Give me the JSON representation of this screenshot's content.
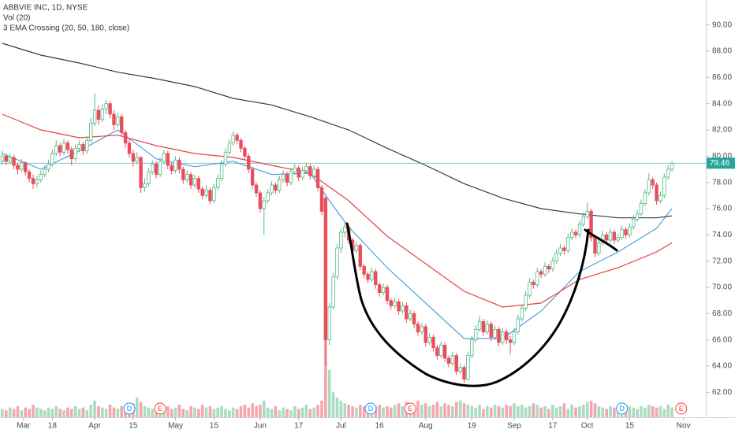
{
  "chart_data": {
    "type": "candlestick",
    "title": "ABBVIE INC, 1D, NYSE",
    "indicators": [
      "Vol (20)",
      "3 EMA Crossing (20, 50, 180, close)"
    ],
    "up_color": "#53b987",
    "down_color": "#eb4d5c",
    "ylim": [
      60.1,
      91.9
    ],
    "yticks": [
      {
        "value": 62,
        "label": "62.00"
      },
      {
        "value": 64,
        "label": "64.00"
      },
      {
        "value": 66,
        "label": "66.00"
      },
      {
        "value": 68,
        "label": "68.00"
      },
      {
        "value": 70,
        "label": "70.00"
      },
      {
        "value": 72,
        "label": "72.00"
      },
      {
        "value": 74,
        "label": "74.00"
      },
      {
        "value": 76,
        "label": "76.00"
      },
      {
        "value": 78,
        "label": "78.00"
      },
      {
        "value": 80,
        "label": "80.00"
      },
      {
        "value": 82,
        "label": "82.00"
      },
      {
        "value": 84,
        "label": "84.00"
      },
      {
        "value": 86,
        "label": "86.00"
      },
      {
        "value": 88,
        "label": "88.00"
      },
      {
        "value": 90,
        "label": "90.00"
      }
    ],
    "xlim": [
      -0.6,
      182.8
    ],
    "xticks": [
      {
        "value": 5.5,
        "label": "Mar"
      },
      {
        "value": 13,
        "label": "18"
      },
      {
        "value": 24,
        "label": "Apr"
      },
      {
        "value": 34,
        "label": "15"
      },
      {
        "value": 45,
        "label": "May"
      },
      {
        "value": 55,
        "label": "15"
      },
      {
        "value": 67,
        "label": "Jun"
      },
      {
        "value": 77,
        "label": "17"
      },
      {
        "value": 88,
        "label": "Jul"
      },
      {
        "value": 98,
        "label": "16"
      },
      {
        "value": 110,
        "label": "Aug"
      },
      {
        "value": 122,
        "label": "19"
      },
      {
        "value": 133,
        "label": "Sep"
      },
      {
        "value": 143,
        "label": "17"
      },
      {
        "value": 152,
        "label": "Oct"
      },
      {
        "value": 163,
        "label": "15"
      },
      {
        "value": 177,
        "label": "Nov"
      }
    ],
    "vlim": [
      0,
      300
    ],
    "last_price": 79.46,
    "last_price_color": "#26a69a",
    "grid": false,
    "ohlc": [
      [
        79.6,
        80.4,
        79.3,
        80.0
      ],
      [
        80.0,
        80.2,
        79.3,
        79.6
      ],
      [
        79.6,
        80.2,
        79.4,
        79.9
      ],
      [
        79.9,
        80.1,
        79.0,
        79.3
      ],
      [
        79.3,
        79.5,
        78.6,
        79.0
      ],
      [
        79.0,
        79.8,
        78.8,
        79.5
      ],
      [
        79.5,
        79.6,
        78.5,
        78.8
      ],
      [
        78.8,
        79.0,
        78.0,
        78.3
      ],
      [
        78.3,
        78.6,
        77.5,
        77.9
      ],
      [
        77.9,
        78.5,
        77.6,
        78.2
      ],
      [
        78.2,
        78.9,
        78.0,
        78.6
      ],
      [
        78.6,
        79.3,
        78.4,
        79.0
      ],
      [
        79.0,
        79.7,
        78.8,
        79.4
      ],
      [
        79.4,
        80.5,
        79.2,
        80.2
      ],
      [
        80.2,
        81.2,
        80.0,
        80.8
      ],
      [
        80.8,
        81.0,
        80.0,
        80.3
      ],
      [
        80.3,
        81.3,
        80.1,
        81.0
      ],
      [
        81.0,
        81.2,
        80.2,
        80.5
      ],
      [
        80.5,
        80.7,
        79.3,
        79.8
      ],
      [
        79.8,
        80.9,
        79.6,
        80.6
      ],
      [
        80.6,
        81.2,
        80.3,
        80.9
      ],
      [
        80.9,
        81.1,
        80.1,
        80.4
      ],
      [
        80.4,
        81.5,
        80.2,
        81.2
      ],
      [
        81.2,
        82.9,
        81.0,
        82.5
      ],
      [
        82.5,
        84.8,
        82.3,
        83.5
      ],
      [
        83.5,
        83.9,
        82.4,
        82.8
      ],
      [
        82.8,
        84.0,
        82.6,
        83.6
      ],
      [
        83.6,
        84.3,
        83.2,
        84.0
      ],
      [
        84.0,
        84.2,
        82.9,
        83.2
      ],
      [
        83.2,
        83.5,
        82.0,
        82.4
      ],
      [
        82.4,
        83.3,
        82.2,
        83.0
      ],
      [
        83.0,
        83.2,
        81.5,
        81.8
      ],
      [
        81.8,
        82.0,
        80.6,
        81.0
      ],
      [
        81.0,
        81.3,
        79.9,
        80.2
      ],
      [
        80.2,
        80.5,
        79.2,
        79.6
      ],
      [
        79.6,
        80.3,
        79.4,
        79.9
      ],
      [
        79.9,
        80.0,
        77.2,
        77.6
      ],
      [
        77.6,
        78.3,
        77.3,
        77.9
      ],
      [
        77.9,
        79.1,
        77.7,
        78.8
      ],
      [
        78.8,
        79.7,
        78.6,
        79.4
      ],
      [
        79.4,
        79.6,
        78.3,
        78.6
      ],
      [
        78.6,
        79.9,
        78.4,
        79.6
      ],
      [
        79.6,
        80.5,
        79.4,
        80.2
      ],
      [
        80.2,
        80.4,
        79.0,
        79.3
      ],
      [
        79.3,
        79.5,
        78.6,
        78.9
      ],
      [
        78.9,
        80.0,
        78.7,
        79.7
      ],
      [
        79.7,
        79.9,
        78.7,
        79.0
      ],
      [
        79.0,
        79.2,
        77.9,
        78.2
      ],
      [
        78.2,
        78.9,
        78.0,
        78.6
      ],
      [
        78.6,
        78.8,
        77.5,
        77.8
      ],
      [
        77.8,
        78.6,
        77.6,
        78.3
      ],
      [
        78.3,
        78.5,
        77.2,
        77.5
      ],
      [
        77.5,
        77.7,
        76.7,
        77.0
      ],
      [
        77.0,
        77.8,
        76.8,
        77.4
      ],
      [
        77.4,
        77.6,
        76.3,
        76.6
      ],
      [
        76.6,
        77.9,
        76.4,
        77.6
      ],
      [
        77.6,
        78.6,
        77.4,
        78.3
      ],
      [
        78.3,
        79.7,
        78.1,
        79.4
      ],
      [
        79.4,
        80.6,
        79.2,
        80.3
      ],
      [
        80.3,
        81.3,
        80.1,
        81.0
      ],
      [
        81.0,
        81.9,
        80.8,
        81.6
      ],
      [
        81.6,
        81.8,
        80.9,
        81.2
      ],
      [
        81.2,
        81.4,
        80.3,
        80.6
      ],
      [
        80.6,
        80.8,
        79.7,
        80.0
      ],
      [
        80.0,
        80.2,
        78.7,
        79.0
      ],
      [
        79.0,
        79.2,
        77.5,
        77.8
      ],
      [
        77.8,
        78.0,
        76.9,
        77.2
      ],
      [
        77.2,
        77.4,
        75.7,
        76.0
      ],
      [
        76.0,
        76.9,
        74.0,
        76.6
      ],
      [
        76.6,
        77.5,
        76.4,
        77.2
      ],
      [
        77.2,
        78.1,
        77.0,
        77.8
      ],
      [
        77.8,
        78.0,
        77.1,
        77.4
      ],
      [
        77.4,
        78.5,
        77.2,
        78.2
      ],
      [
        78.2,
        78.9,
        78.0,
        78.6
      ],
      [
        78.6,
        78.8,
        77.7,
        78.0
      ],
      [
        78.0,
        79.1,
        77.8,
        78.8
      ],
      [
        78.8,
        79.4,
        78.6,
        79.1
      ],
      [
        79.1,
        79.3,
        78.1,
        78.4
      ],
      [
        78.4,
        79.2,
        78.2,
        78.9
      ],
      [
        78.9,
        79.5,
        78.7,
        79.2
      ],
      [
        79.2,
        79.4,
        78.2,
        78.5
      ],
      [
        78.5,
        79.3,
        78.3,
        79.0
      ],
      [
        79.0,
        79.2,
        77.3,
        77.6
      ],
      [
        77.6,
        77.8,
        75.5,
        75.8
      ],
      [
        76.8,
        77.0,
        64.0,
        66.0
      ],
      [
        66.0,
        68.8,
        65.6,
        68.5
      ],
      [
        68.5,
        71.1,
        68.3,
        70.8
      ],
      [
        70.8,
        73.3,
        70.6,
        73.0
      ],
      [
        73.0,
        74.5,
        72.6,
        74.2
      ],
      [
        74.2,
        75.0,
        73.8,
        74.6
      ],
      [
        74.6,
        74.8,
        73.3,
        73.6
      ],
      [
        73.6,
        73.8,
        72.5,
        72.8
      ],
      [
        72.8,
        73.5,
        72.6,
        73.2
      ],
      [
        73.2,
        73.4,
        71.3,
        71.6
      ],
      [
        71.6,
        71.8,
        70.7,
        71.0
      ],
      [
        71.0,
        71.2,
        70.3,
        70.6
      ],
      [
        70.6,
        71.5,
        70.4,
        71.2
      ],
      [
        71.2,
        71.4,
        69.9,
        70.2
      ],
      [
        70.2,
        70.4,
        69.3,
        69.6
      ],
      [
        69.6,
        70.3,
        69.4,
        70.0
      ],
      [
        70.0,
        70.2,
        68.7,
        69.0
      ],
      [
        69.0,
        69.2,
        68.3,
        68.6
      ],
      [
        68.6,
        69.2,
        68.4,
        68.9
      ],
      [
        68.9,
        69.1,
        67.9,
        68.2
      ],
      [
        68.2,
        68.9,
        68.0,
        68.6
      ],
      [
        68.6,
        68.8,
        67.3,
        67.6
      ],
      [
        67.6,
        68.3,
        67.4,
        68.0
      ],
      [
        68.0,
        68.2,
        66.9,
        67.2
      ],
      [
        67.2,
        67.4,
        66.3,
        66.6
      ],
      [
        66.6,
        67.3,
        66.4,
        67.0
      ],
      [
        67.0,
        67.2,
        65.5,
        65.8
      ],
      [
        65.8,
        66.5,
        65.6,
        66.2
      ],
      [
        66.2,
        66.4,
        65.1,
        65.4
      ],
      [
        65.4,
        65.6,
        64.5,
        64.8
      ],
      [
        64.8,
        65.9,
        64.6,
        65.6
      ],
      [
        65.6,
        65.8,
        64.3,
        64.6
      ],
      [
        64.6,
        64.8,
        63.9,
        64.2
      ],
      [
        64.2,
        65.1,
        64.0,
        64.8
      ],
      [
        64.8,
        65.0,
        63.3,
        63.6
      ],
      [
        63.6,
        64.2,
        63.4,
        63.9
      ],
      [
        63.9,
        64.1,
        62.7,
        63.0
      ],
      [
        63.0,
        65.1,
        62.9,
        64.8
      ],
      [
        64.8,
        66.3,
        64.6,
        66.0
      ],
      [
        66.0,
        67.1,
        65.8,
        66.8
      ],
      [
        66.8,
        67.8,
        66.6,
        67.4
      ],
      [
        67.4,
        67.6,
        66.3,
        66.6
      ],
      [
        66.6,
        67.5,
        66.4,
        67.2
      ],
      [
        67.2,
        67.4,
        65.9,
        66.2
      ],
      [
        66.2,
        67.1,
        66.0,
        66.8
      ],
      [
        66.8,
        67.0,
        65.5,
        65.8
      ],
      [
        65.8,
        66.9,
        65.6,
        66.6
      ],
      [
        66.6,
        66.8,
        65.7,
        66.0
      ],
      [
        66.0,
        66.3,
        64.9,
        65.8
      ],
      [
        65.8,
        66.9,
        65.6,
        66.6
      ],
      [
        66.6,
        67.9,
        66.4,
        67.6
      ],
      [
        67.6,
        68.7,
        67.4,
        68.4
      ],
      [
        68.4,
        69.7,
        68.2,
        69.4
      ],
      [
        69.4,
        70.7,
        69.2,
        70.4
      ],
      [
        70.4,
        70.6,
        69.9,
        70.2
      ],
      [
        70.2,
        71.5,
        70.0,
        71.2
      ],
      [
        71.2,
        71.4,
        70.7,
        71.0
      ],
      [
        71.0,
        71.9,
        70.8,
        71.6
      ],
      [
        71.6,
        71.8,
        71.1,
        71.4
      ],
      [
        71.4,
        72.3,
        71.2,
        72.0
      ],
      [
        72.0,
        72.9,
        71.8,
        72.6
      ],
      [
        72.6,
        73.3,
        72.4,
        73.0
      ],
      [
        73.0,
        73.2,
        72.5,
        72.8
      ],
      [
        72.8,
        74.1,
        72.6,
        73.8
      ],
      [
        73.8,
        74.5,
        73.6,
        74.2
      ],
      [
        74.2,
        74.4,
        73.7,
        74.0
      ],
      [
        74.0,
        75.1,
        73.8,
        74.8
      ],
      [
        74.8,
        75.7,
        74.6,
        75.4
      ],
      [
        75.4,
        76.5,
        75.2,
        75.8
      ],
      [
        75.8,
        76.0,
        73.5,
        73.8
      ],
      [
        73.8,
        74.0,
        72.3,
        72.6
      ],
      [
        72.6,
        73.7,
        72.4,
        73.4
      ],
      [
        73.4,
        74.3,
        73.2,
        74.0
      ],
      [
        74.0,
        74.2,
        73.3,
        73.6
      ],
      [
        73.6,
        74.5,
        73.4,
        74.2
      ],
      [
        74.2,
        74.4,
        73.3,
        73.6
      ],
      [
        73.6,
        74.1,
        73.4,
        73.8
      ],
      [
        73.8,
        74.7,
        73.6,
        74.4
      ],
      [
        74.4,
        74.6,
        73.7,
        74.0
      ],
      [
        74.0,
        74.9,
        73.8,
        74.6
      ],
      [
        74.6,
        75.5,
        74.4,
        75.2
      ],
      [
        75.2,
        75.9,
        75.0,
        75.6
      ],
      [
        75.6,
        76.7,
        75.4,
        76.4
      ],
      [
        76.4,
        77.5,
        76.2,
        77.2
      ],
      [
        77.2,
        78.7,
        77.0,
        78.2
      ],
      [
        78.2,
        78.4,
        77.5,
        77.8
      ],
      [
        77.8,
        78.0,
        76.3,
        76.6
      ],
      [
        76.6,
        77.3,
        76.4,
        77.0
      ],
      [
        77.0,
        78.7,
        76.8,
        78.4
      ],
      [
        78.4,
        79.3,
        78.2,
        79.0
      ],
      [
        79.0,
        79.6,
        78.8,
        79.46
      ]
    ],
    "volume": [
      6,
      5,
      7,
      6,
      8,
      5,
      7,
      6,
      9,
      7,
      6,
      5,
      7,
      6,
      8,
      6,
      5,
      7,
      6,
      8,
      6,
      7,
      5,
      9,
      12,
      8,
      7,
      6,
      9,
      7,
      6,
      8,
      7,
      9,
      10,
      14,
      11,
      8,
      7,
      6,
      7,
      6,
      5,
      8,
      6,
      7,
      9,
      6,
      5,
      8,
      7,
      6,
      9,
      7,
      8,
      6,
      7,
      8,
      6,
      5,
      7,
      6,
      8,
      9,
      7,
      10,
      8,
      9,
      12,
      7,
      6,
      8,
      5,
      7,
      6,
      5,
      8,
      6,
      7,
      9,
      6,
      7,
      9,
      12,
      100,
      34,
      18,
      14,
      12,
      10,
      9,
      8,
      7,
      9,
      8,
      7,
      10,
      8,
      9,
      7,
      8,
      7,
      9,
      10,
      8,
      11,
      9,
      8,
      12,
      9,
      10,
      8,
      9,
      11,
      8,
      10,
      9,
      8,
      11,
      12,
      10,
      9,
      8,
      7,
      9,
      6,
      8,
      7,
      9,
      8,
      7,
      9,
      8,
      10,
      8,
      9,
      7,
      8,
      10,
      9,
      7,
      8,
      6,
      9,
      7,
      8,
      10,
      6,
      9,
      7,
      8,
      9,
      11,
      12,
      10,
      8,
      7,
      6,
      8,
      7,
      6,
      7,
      9,
      8,
      7,
      6,
      8,
      7,
      9,
      8,
      7,
      8,
      6,
      9,
      7
    ],
    "lines": [
      {
        "color": "#4ba3d9",
        "x": [
          0,
          10,
          20,
          30,
          40,
          50,
          60,
          70,
          80,
          85,
          90,
          100,
          110,
          120,
          130,
          140,
          150,
          160,
          170,
          174
        ],
        "values": [
          80.2,
          79.0,
          80.4,
          82.0,
          79.8,
          79.2,
          79.6,
          78.6,
          78.7,
          76.6,
          74.6,
          71.5,
          68.8,
          66.1,
          66.1,
          68.2,
          71.2,
          72.7,
          74.5,
          76.0
        ]
      },
      {
        "color": "#e8413f",
        "x": [
          0,
          10,
          20,
          30,
          40,
          50,
          60,
          70,
          80,
          90,
          100,
          110,
          120,
          130,
          140,
          150,
          160,
          170,
          174
        ],
        "values": [
          83.2,
          82.0,
          81.4,
          81.6,
          80.8,
          80.2,
          79.9,
          79.3,
          78.7,
          76.6,
          73.9,
          71.8,
          69.7,
          68.5,
          68.8,
          70.6,
          71.5,
          72.7,
          73.4
        ]
      },
      {
        "color": "#3a3a3a",
        "x": [
          0,
          10,
          20,
          30,
          40,
          50,
          60,
          70,
          80,
          90,
          100,
          110,
          120,
          130,
          140,
          150,
          160,
          170,
          174
        ],
        "values": [
          88.6,
          87.7,
          87.1,
          86.4,
          85.9,
          85.3,
          84.4,
          83.9,
          83.0,
          82.0,
          80.6,
          79.3,
          77.9,
          76.8,
          76.0,
          75.6,
          75.3,
          75.3,
          75.45
        ]
      }
    ],
    "events": [
      {
        "label": "D",
        "x": 33,
        "color": "#2196f3"
      },
      {
        "label": "E",
        "x": 41,
        "color": "#f44336"
      },
      {
        "label": "D",
        "x": 95.7,
        "color": "#2196f3"
      },
      {
        "label": "E",
        "x": 106,
        "color": "#f44336"
      },
      {
        "label": "D",
        "x": 161,
        "color": "#2196f3"
      },
      {
        "label": "E",
        "x": 176.4,
        "color": "#f44336"
      }
    ]
  }
}
